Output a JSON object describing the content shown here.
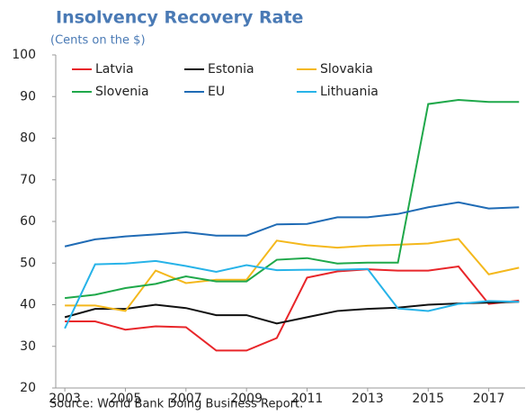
{
  "chart_data": {
    "type": "line",
    "title": "Insolvency Recovery Rate",
    "subtitle": "(Cents on the $)",
    "source": "Source: World Bank Doing Business Report.",
    "x": [
      2003,
      2004,
      2005,
      2006,
      2007,
      2008,
      2009,
      2010,
      2011,
      2012,
      2013,
      2014,
      2015,
      2016,
      2017,
      2018
    ],
    "xlim": [
      2002.7,
      2018.2
    ],
    "xticks": [
      2003,
      2005,
      2007,
      2009,
      2011,
      2013,
      2015,
      2017
    ],
    "ylim": [
      20,
      100
    ],
    "yticks": [
      20,
      30,
      40,
      50,
      60,
      70,
      80,
      90,
      100
    ],
    "series": [
      {
        "name": "Latvia",
        "color": "#e8262a",
        "values": [
          36,
          36,
          34,
          34.8,
          34.6,
          29,
          29,
          32,
          46.5,
          48,
          48.5,
          48.2,
          48.2,
          49.2,
          40.2,
          41
        ]
      },
      {
        "name": "Estonia",
        "color": "#111111",
        "values": [
          37,
          39,
          39,
          40,
          39.2,
          37.5,
          37.5,
          35.5,
          37,
          38.5,
          39,
          39.3,
          40,
          40.3,
          40.5,
          40.7
        ]
      },
      {
        "name": "Slovakia",
        "color": "#f4b81c",
        "values": [
          39.8,
          39.8,
          38.5,
          48.2,
          45.2,
          46,
          46,
          55.4,
          54.3,
          53.7,
          54.2,
          54.4,
          54.7,
          55.8,
          47.3,
          48.9
        ]
      },
      {
        "name": "Slovenia",
        "color": "#1fa84a",
        "values": [
          41.6,
          42.4,
          44,
          45,
          46.8,
          45.6,
          45.6,
          50.8,
          51.2,
          49.9,
          50.1,
          50.1,
          88.2,
          89.2,
          88.7,
          88.7
        ]
      },
      {
        "name": "EU",
        "color": "#1f6bb5",
        "values": [
          54,
          55.7,
          56.4,
          56.9,
          57.4,
          56.6,
          56.6,
          59.3,
          59.4,
          61,
          61,
          61.8,
          63.4,
          64.6,
          63.1,
          63.4
        ]
      },
      {
        "name": "Lithuania",
        "color": "#27b3e8",
        "values": [
          34.3,
          49.7,
          49.9,
          50.5,
          49.3,
          47.9,
          49.5,
          48.3,
          48.4,
          48.4,
          48.6,
          39.1,
          38.5,
          40.2,
          40.9,
          40.7
        ]
      }
    ]
  }
}
